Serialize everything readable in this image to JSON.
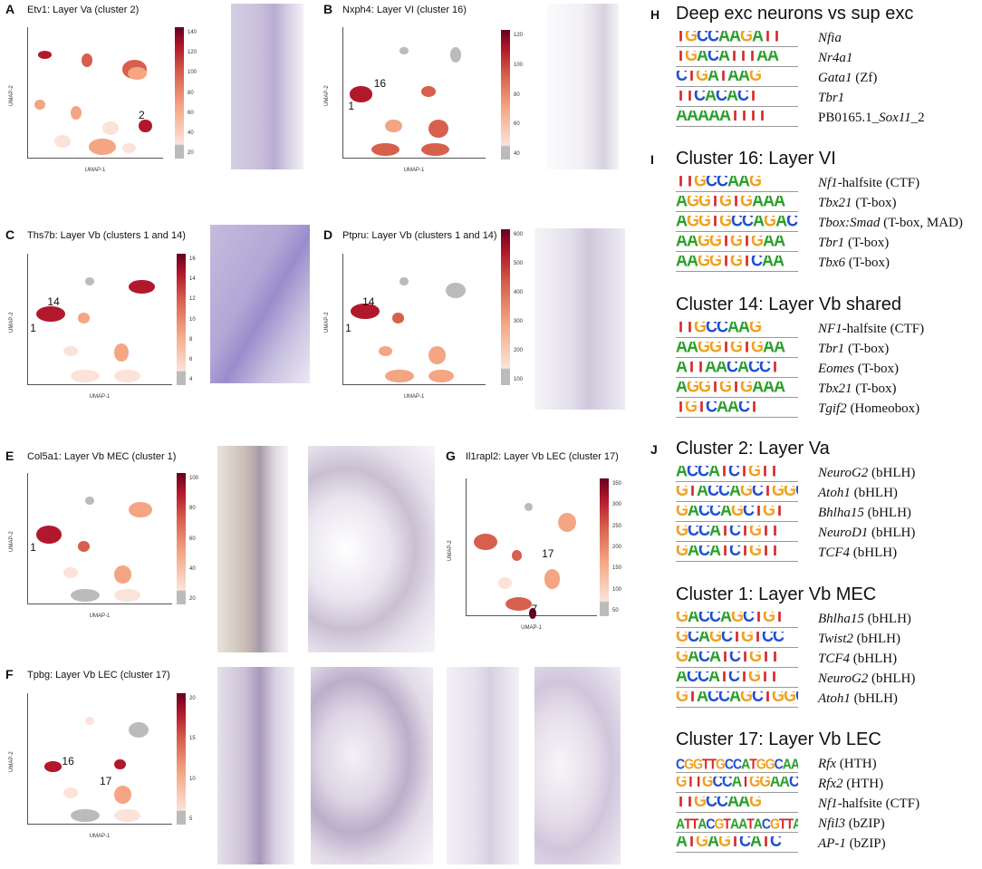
{
  "colors": {
    "A": "#2ca02c",
    "C": "#1f4fd1",
    "G": "#f0a020",
    "T": "#d62728"
  },
  "panels": {
    "A": {
      "letter": "A",
      "title": "Etv1: Layer Va (cluster 2)",
      "ticks": [
        "140",
        "120",
        "100",
        "80",
        "60",
        "40",
        "20"
      ],
      "labels": [
        "2"
      ]
    },
    "B": {
      "letter": "B",
      "title": "Nxph4: Layer VI (cluster 16)",
      "ticks": [
        "120",
        "100",
        "80",
        "60",
        "40"
      ],
      "labels": [
        "16",
        "1"
      ]
    },
    "C": {
      "letter": "C",
      "title": "Ths7b: Layer Vb (clusters 1 and 14)",
      "ticks": [
        "16",
        "14",
        "12",
        "10",
        "8",
        "6",
        "4"
      ],
      "labels": [
        "14",
        "1"
      ]
    },
    "D": {
      "letter": "D",
      "title": "Ptpru: Layer Vb (clusters 1 and 14)",
      "ticks": [
        "600",
        "500",
        "400",
        "300",
        "200",
        "100"
      ],
      "labels": [
        "14",
        "1"
      ]
    },
    "E": {
      "letter": "E",
      "title": "Col5a1: Layer Vb MEC (cluster 1)",
      "ticks": [
        "100",
        "80",
        "60",
        "40",
        "20"
      ],
      "labels": [
        "1"
      ]
    },
    "F": {
      "letter": "F",
      "title": "Tpbg: Layer Vb LEC (cluster 17)",
      "ticks": [
        "20",
        "15",
        "10",
        "5"
      ],
      "labels": [
        "16",
        "17"
      ]
    },
    "G": {
      "letter": "G",
      "title": "Il1rapl2: Layer Vb LEC (cluster 17)",
      "ticks": [
        "350",
        "300",
        "250",
        "200",
        "150",
        "100",
        "50"
      ],
      "labels": [
        "17",
        "7"
      ]
    }
  },
  "axis": {
    "x": "UMAP-1",
    "y": "UMAP-2"
  },
  "sections": {
    "H": {
      "letter": "H",
      "title": "Deep exc neurons vs sup exc",
      "rows": [
        {
          "seq": "TGCCAAGATT",
          "gene": "Nfia",
          "family": ""
        },
        {
          "seq": "TGACATTTAA",
          "gene": "Nr4a1",
          "family": ""
        },
        {
          "seq": "CTGATAAG",
          "gene": "Gata1",
          "family": "(Zf)"
        },
        {
          "seq": "TTCACACT",
          "gene": "Tbr1",
          "family": ""
        },
        {
          "seq": "AAAAATTTT",
          "gene": "Sox11",
          "family": "_2",
          "prefix": "PB0165.1_"
        }
      ]
    },
    "I": {
      "letter": "I",
      "title": "Cluster 16: Layer VI",
      "rows": [
        {
          "seq": "TTGCCAAG",
          "gene": "Nf1",
          "family": "-halfsite (CTF)"
        },
        {
          "seq": "AGGTGTGAAA",
          "gene": "Tbx21",
          "family": "(T-box)"
        },
        {
          "seq": "AGGTGCCAGACA",
          "gene": "Tbox:Smad",
          "family": "(T-box, MAD)"
        },
        {
          "seq": "AAGGTGTGAA",
          "gene": "Tbr1",
          "family": "(T-box)"
        },
        {
          "seq": "AAGGTGTCAA",
          "gene": "Tbx6",
          "family": "(T-box)"
        }
      ]
    },
    "I2": {
      "title": "Cluster 14: Layer Vb shared",
      "rows": [
        {
          "seq": "TTGCCAAG",
          "gene": "NF1",
          "family": "-halfsite (CTF)"
        },
        {
          "seq": "AAGGTGTGAA",
          "gene": "Tbr1",
          "family": "(T-box)"
        },
        {
          "seq": "ATTAACACCT",
          "gene": "Eomes",
          "family": "(T-box)"
        },
        {
          "seq": "AGGTGTGAAA",
          "gene": "Tbx21",
          "family": "(T-box)"
        },
        {
          "seq": "TGTCAACT",
          "gene": "Tgif2",
          "family": "(Homeobox)"
        }
      ]
    },
    "J": {
      "letter": "J",
      "title": "Cluster 2: Layer Va",
      "rows": [
        {
          "seq": "ACCATCTGTT",
          "gene": "NeuroG2",
          "family": "(bHLH)"
        },
        {
          "seq": "GTACCAGCTGGC",
          "gene": "Atoh1",
          "family": "(bHLH)"
        },
        {
          "seq": "GACCAGCTGT",
          "gene": "Bhlha15",
          "family": "(bHLH)"
        },
        {
          "seq": "GCCATCTGTT",
          "gene": "NeuroD1",
          "family": "(bHLH)"
        },
        {
          "seq": "GACATCTGTT",
          "gene": "TCF4",
          "family": "(bHLH)"
        }
      ]
    },
    "J2": {
      "title": "Cluster 1: Layer Vb MEC",
      "rows": [
        {
          "seq": "GACCAGCTGT",
          "gene": "Bhlha15",
          "family": "(bHLH)"
        },
        {
          "seq": "GCAGCTGTCC",
          "gene": "Twist2",
          "family": "(bHLH)"
        },
        {
          "seq": "GACATCTGTT",
          "gene": "TCF4",
          "family": "(bHLH)"
        },
        {
          "seq": "ACCATCTGTT",
          "gene": "NeuroG2",
          "family": "(bHLH)"
        },
        {
          "seq": "GTACCAGCTGGC",
          "gene": "Atoh1",
          "family": "(bHLH)"
        }
      ]
    },
    "J3": {
      "title": "Cluster 17: Layer Vb LEC",
      "rows": [
        {
          "seq": "CGGTTGCCATGGCAAC",
          "gene": "Rfx",
          "family": "(HTH)"
        },
        {
          "seq": "GTTGCCATGGAACC",
          "gene": "Rfx2",
          "family": "(HTH)"
        },
        {
          "seq": "TTGCCAAG",
          "gene": "Nf1",
          "family": "-halfsite (CTF)"
        },
        {
          "seq": "ATTACGTAATACGTTA",
          "gene": "Nfil3",
          "family": "(bZIP)"
        },
        {
          "seq": "ATGAGTCATC",
          "gene": "AP-1",
          "family": "(bZIP)"
        }
      ]
    }
  }
}
